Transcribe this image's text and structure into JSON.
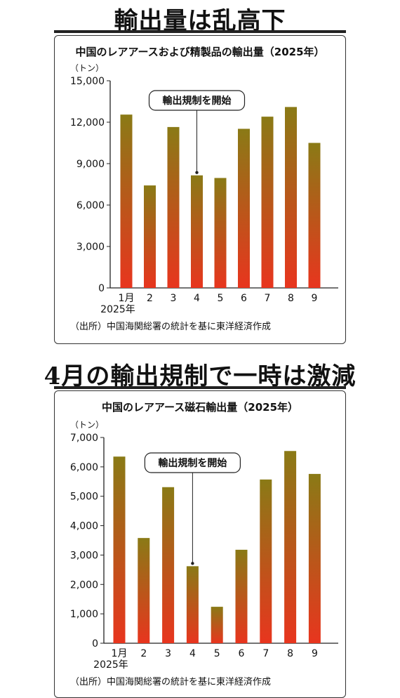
{
  "headline1": "輸出量は乱高下",
  "headline2": "4月の輸出規制で一時は激減",
  "chart_data": [
    {
      "type": "bar",
      "title": "中国のレアアースおよび精製品の輸出量（2025年）",
      "unit_label": "（トン）",
      "categories": [
        "1月",
        "2",
        "3",
        "4",
        "5",
        "6",
        "7",
        "8",
        "9"
      ],
      "year_label": "2025年",
      "values": [
        12550,
        7420,
        11650,
        8150,
        7960,
        11520,
        12400,
        13100,
        10500
      ],
      "ylim": [
        0,
        15000
      ],
      "yticks": [
        "0",
        "3,000",
        "6,000",
        "9,000",
        "12,000",
        "15,000"
      ],
      "annotation": "輸出規制を開始",
      "annotation_target": "4",
      "source": "（出所）中国海関総署の統計を基に東洋経済作成",
      "colors": {
        "bar_top": "#8a7a16",
        "bar_bottom": "#e8351e"
      }
    },
    {
      "type": "bar",
      "title": "中国のレアアース磁石輸出量（2025年）",
      "unit_label": "（トン）",
      "categories": [
        "1月",
        "2",
        "3",
        "4",
        "5",
        "6",
        "7",
        "8",
        "9"
      ],
      "year_label": "2025年",
      "values": [
        6350,
        3580,
        5310,
        2620,
        1240,
        3180,
        5570,
        6540,
        5760
      ],
      "ylim": [
        0,
        7000
      ],
      "yticks": [
        "0",
        "1,000",
        "2,000",
        "3,000",
        "4,000",
        "5,000",
        "6,000",
        "7,000"
      ],
      "annotation": "輸出規制を開始",
      "annotation_target": "4",
      "source": "（出所）中国海関総署の統計を基に東洋経済作成",
      "colors": {
        "bar_top": "#8a7a16",
        "bar_bottom": "#e8351e"
      }
    }
  ]
}
